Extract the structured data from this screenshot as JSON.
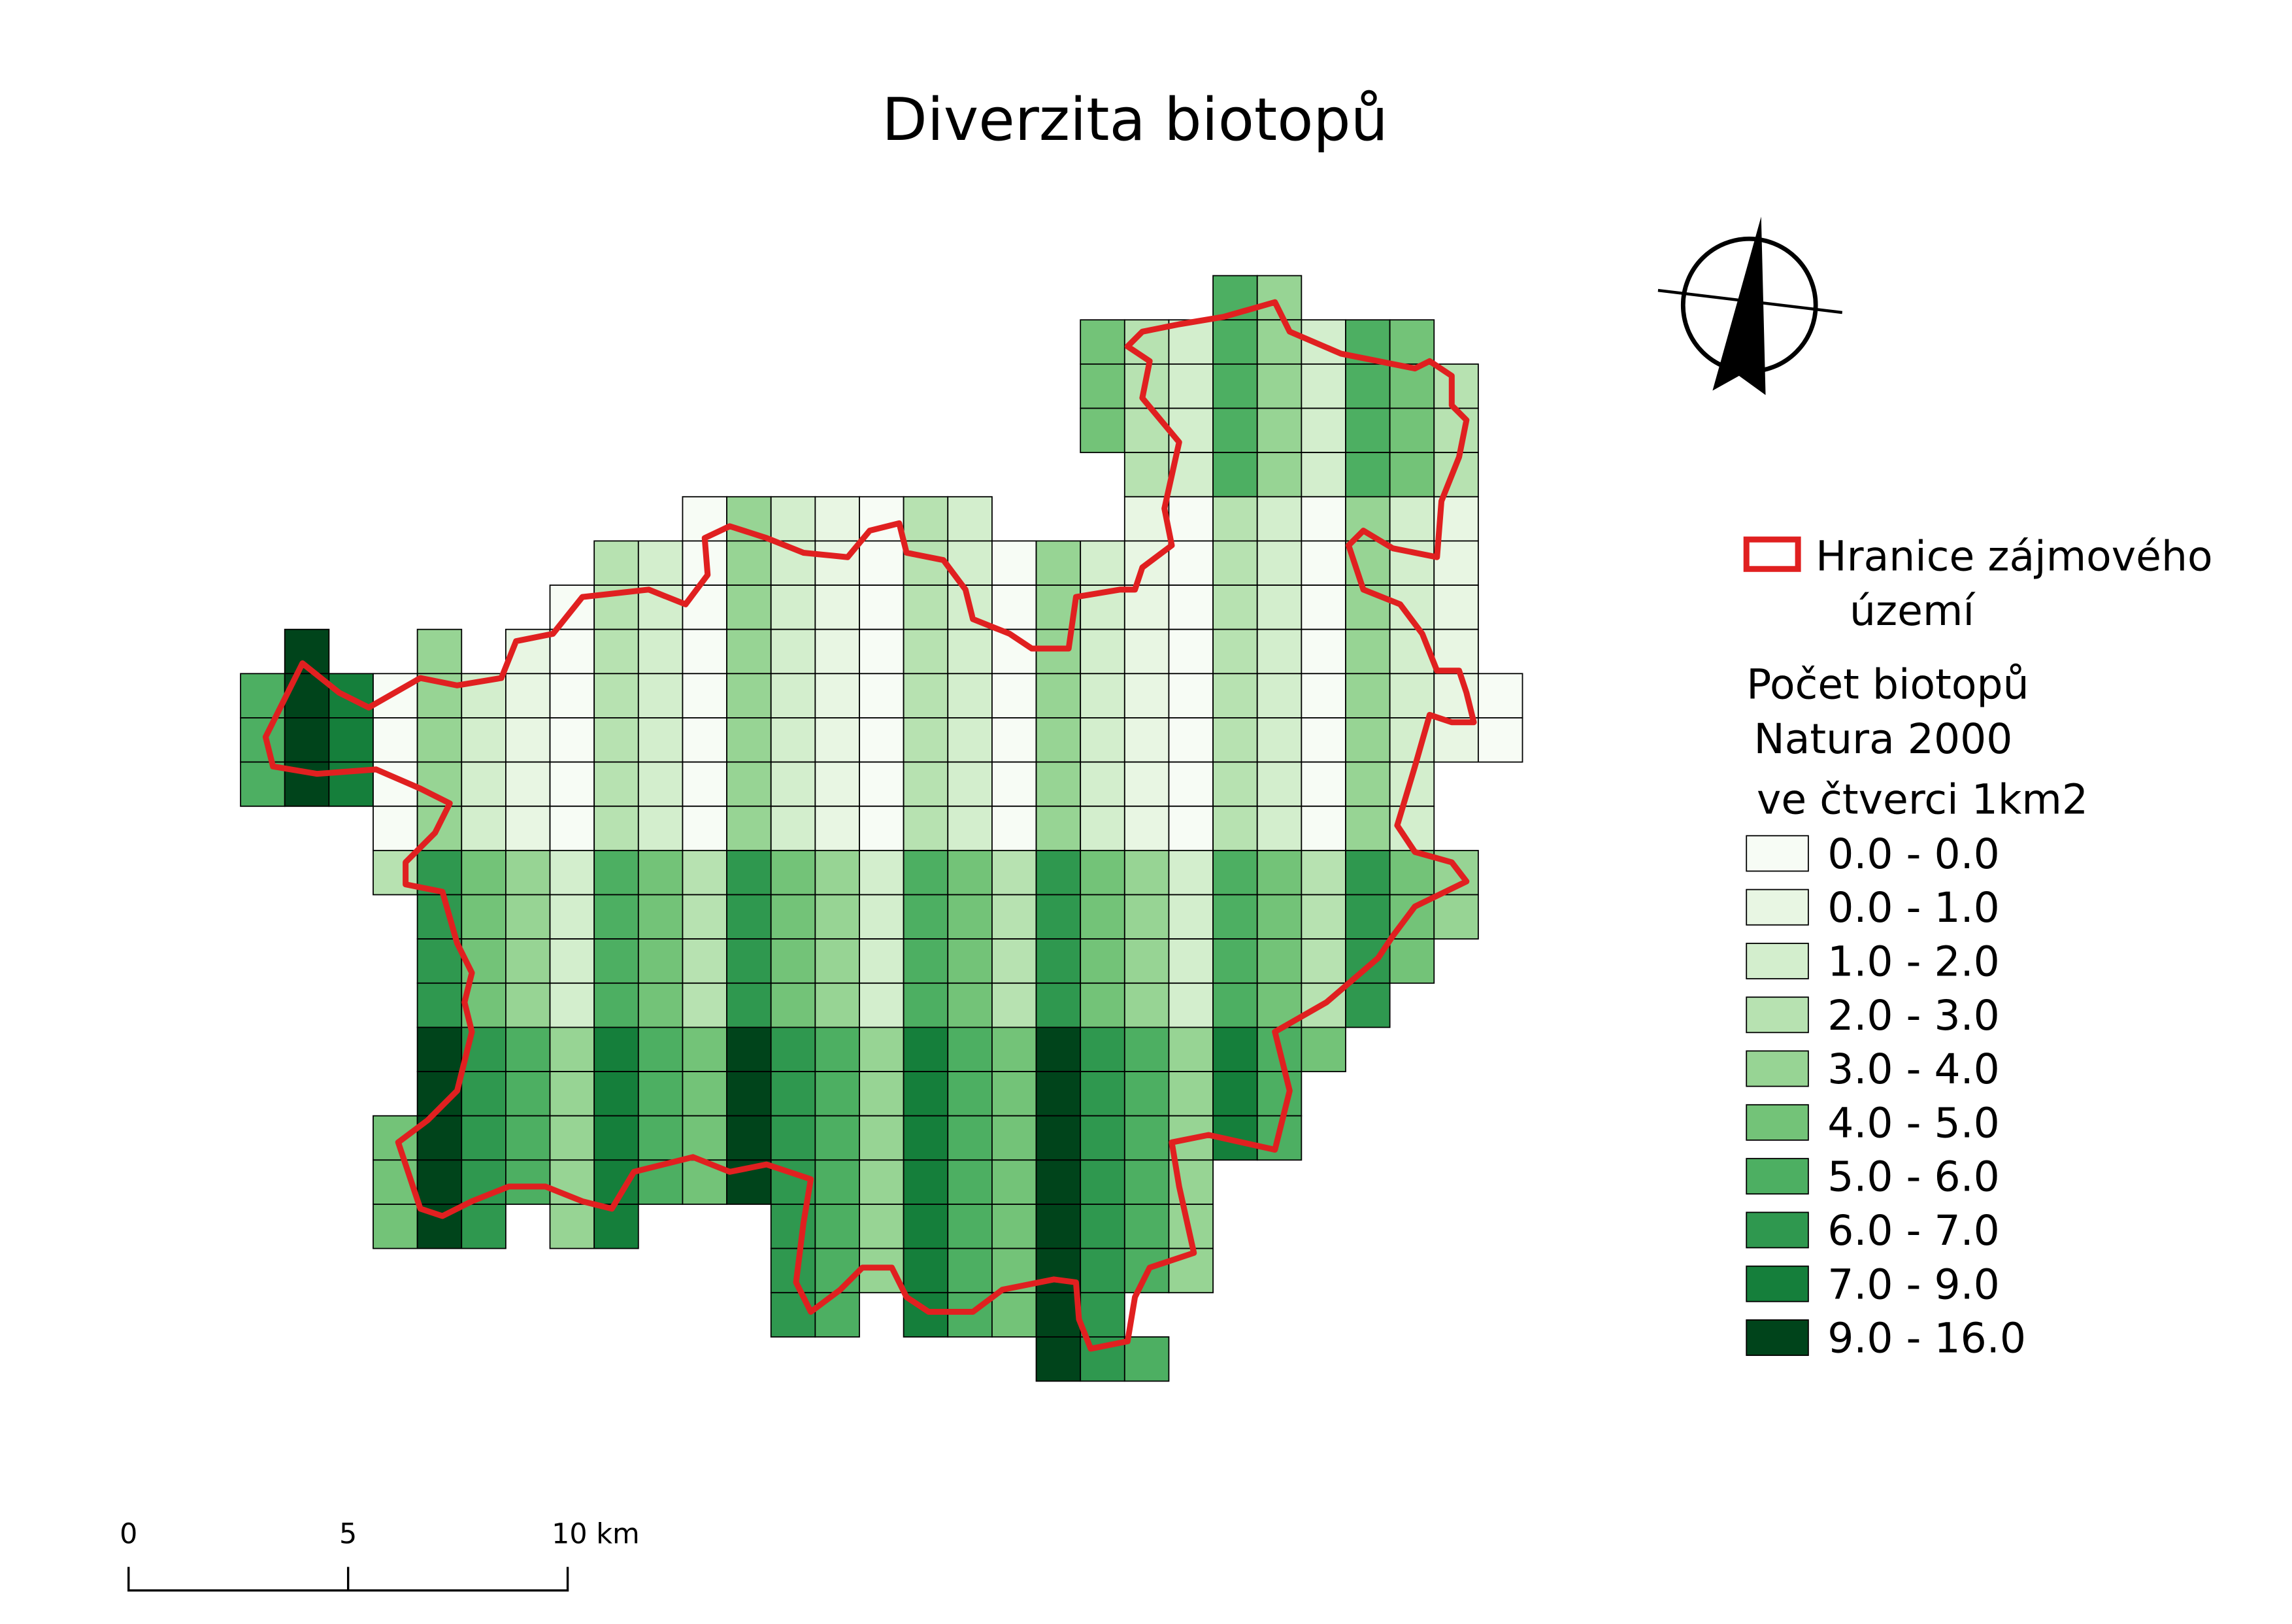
{
  "map": {
    "title": "Diverzita biotopů",
    "legend": {
      "boundary": [
        "Hranice zájmového",
        "území"
      ],
      "title": [
        "Počet biotopů",
        "Natura 2000",
        "ve čtverci 1km2"
      ],
      "items": [
        {
          "label": "0.0 - 0.0",
          "color": "#f7fcf5"
        },
        {
          "label": "0.0 - 1.0",
          "color": "#e8f6e3"
        },
        {
          "label": "1.0 - 2.0",
          "color": "#d3eecd"
        },
        {
          "label": "2.0 - 3.0",
          "color": "#b7e2b1"
        },
        {
          "label": "3.0 - 4.0",
          "color": "#97d494"
        },
        {
          "label": "4.0 - 5.0",
          "color": "#73c378"
        },
        {
          "label": "5.0 - 6.0",
          "color": "#4daf62"
        },
        {
          "label": "6.0 - 7.0",
          "color": "#2f984f"
        },
        {
          "label": "7.0 - 9.0",
          "color": "#157f3b"
        },
        {
          "label": "9.0 - 16.0",
          "color": "#00441b"
        }
      ]
    },
    "scale": [
      "0",
      "5",
      "10 km"
    ]
  }
}
